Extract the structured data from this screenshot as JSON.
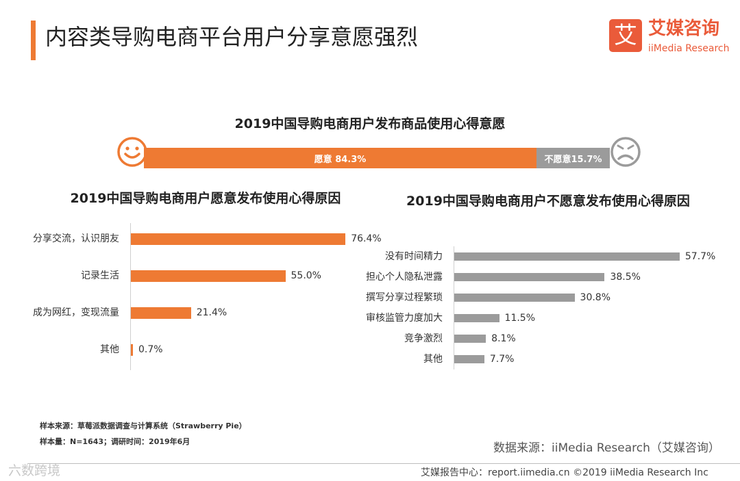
{
  "header": {
    "title": "内容类导购电商平台用户分享意愿强烈",
    "logo_mark": "艾",
    "logo_cn": "艾媒咨询",
    "logo_en": "iiMedia Research"
  },
  "chart_data": [
    {
      "type": "bar",
      "orientation": "horizontal-stacked",
      "title": "2019中国导购电商用户发布商品使用心得意愿",
      "segments": [
        {
          "label": "愿意 84.3%",
          "value": 84.3,
          "color": "#ee7a33"
        },
        {
          "label": "不愿意15.7%",
          "value": 15.7,
          "color": "#9b9b9b"
        }
      ],
      "icons": [
        "smile-icon",
        "sad-icon"
      ]
    },
    {
      "type": "bar",
      "orientation": "horizontal",
      "title": "2019中国导购电商用户愿意发布使用心得原因",
      "categories": [
        "分享交流，认识朋友",
        "记录生活",
        "成为网红，变现流量",
        "其他"
      ],
      "values": [
        76.4,
        55.0,
        21.4,
        0.7
      ],
      "value_labels": [
        "76.4%",
        "55.0%",
        "21.4%",
        "0.7%"
      ],
      "color": "#ee7a33"
    },
    {
      "type": "bar",
      "orientation": "horizontal",
      "title": "2019中国导购电商用户不愿意发布使用心得原因",
      "categories": [
        "没有时间精力",
        "担心个人隐私泄露",
        "撰写分享过程繁琐",
        "审核监管力度加大",
        "竞争激烈",
        "其他"
      ],
      "values": [
        57.7,
        38.5,
        30.8,
        11.5,
        8.1,
        7.7
      ],
      "value_labels": [
        "57.7%",
        "38.5%",
        "30.8%",
        "11.5%",
        "8.1%",
        "7.7%"
      ],
      "color": "#9b9b9b"
    }
  ],
  "notes": {
    "line1": "样本来源：草莓派数据调查与计算系统（Strawberry Pie）",
    "line2": "样本量：N=1643；调研时间：2019年6月"
  },
  "source": "数据来源：iiMedia Research（艾媒咨询）",
  "footer": "艾媒报告中心：report.iimedia.cn  ©2019  iiMedia Research  Inc",
  "watermark": "六数跨境"
}
